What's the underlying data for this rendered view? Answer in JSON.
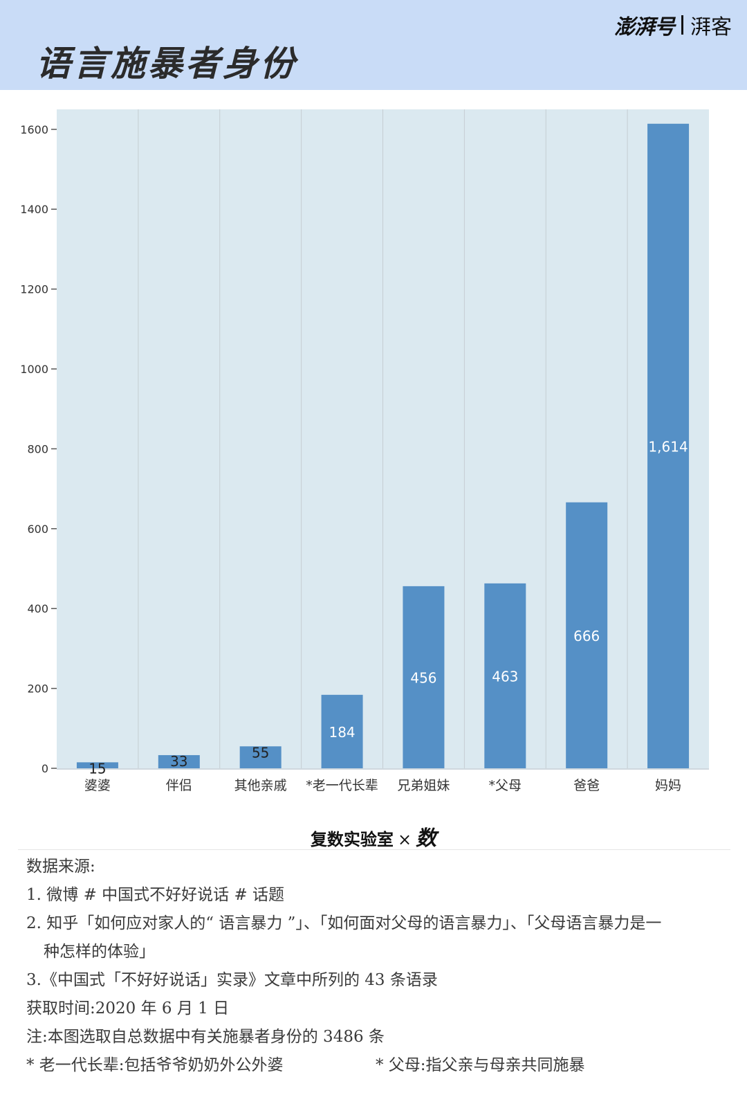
{
  "header": {
    "title": "语言施暴者身份",
    "brand_primary": "澎湃号",
    "brand_secondary": "湃客"
  },
  "colors": {
    "header_bg": "#c9dcf7",
    "plot_bg": "#dbe9f0",
    "bar": "#5590c6"
  },
  "chart_data": {
    "type": "bar",
    "categories": [
      "婆婆",
      "伴侣",
      "其他亲戚",
      "*老一代长辈",
      "兄弟姐妹",
      "*父母",
      "爸爸",
      "妈妈"
    ],
    "values": [
      15,
      33,
      55,
      184,
      456,
      463,
      666,
      1614
    ],
    "data_labels": [
      "15",
      "33",
      "55",
      "184",
      "456",
      "463",
      "666",
      "1,614"
    ],
    "ylim": [
      0,
      1650
    ],
    "yticks": [
      0,
      200,
      400,
      600,
      800,
      1000,
      1200,
      1400,
      1600
    ],
    "grid": "vertical separators between categories"
  },
  "credit": {
    "left": "复数实验室",
    "x": "×",
    "right": "数"
  },
  "notes": {
    "source_title": "数据来源:",
    "source_1": "1. 微博 # 中国式不好好说话 # 话题",
    "source_2a": "2. 知乎「如何应对家人的“ 语言暴力 ”」、「如何面对父母的语言暴力」、「父母语言暴力是一",
    "source_2b": "种怎样的体验」",
    "source_3": "3.《中国式「不好好说话」实录》文章中所列的 43 条语录",
    "time": "获取时间:2020 年 6 月 1 日",
    "note": "注:本图选取自总数据中有关施暴者身份的 3486 条",
    "foot_1": "* 老一代长辈:包括爷爷奶奶外公外婆",
    "foot_2": "* 父母:指父亲与母亲共同施暴"
  }
}
